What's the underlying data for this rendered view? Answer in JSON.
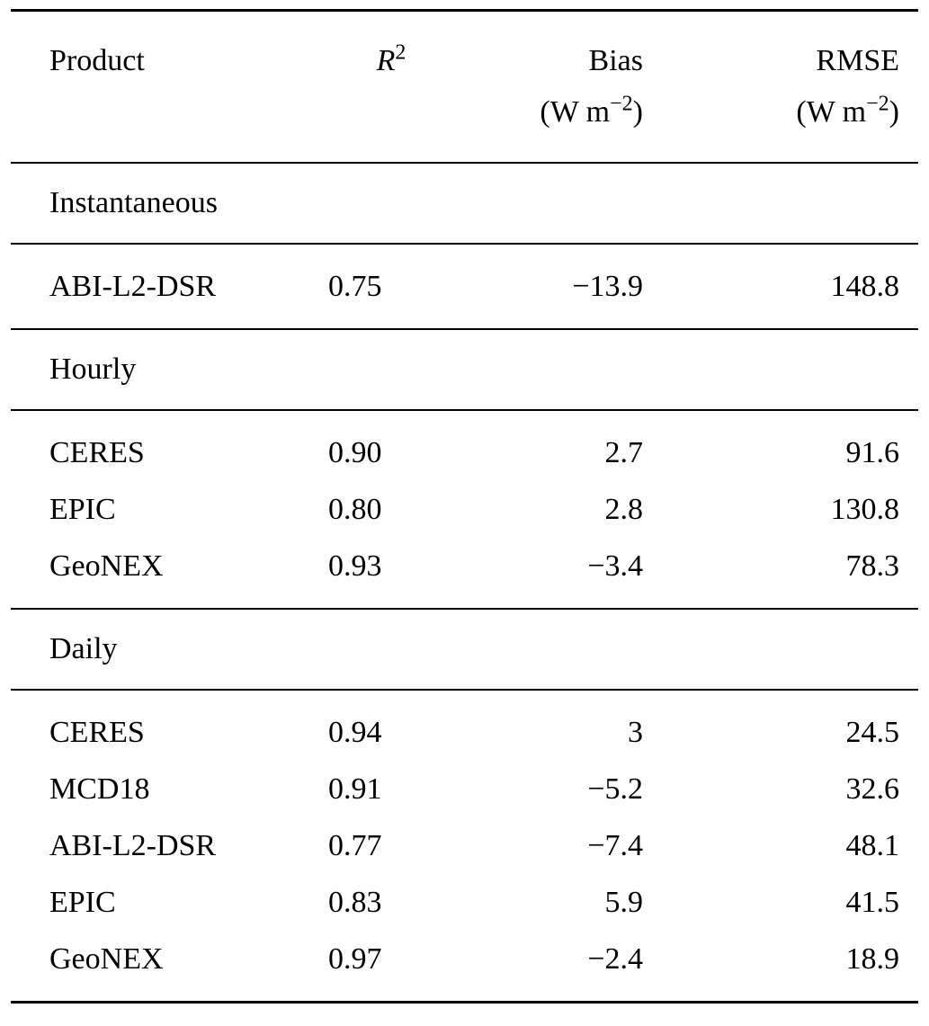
{
  "page": {
    "background": "#ffffff",
    "text_color": "#000000"
  },
  "table": {
    "header": {
      "product": "Product",
      "r2_base": "R",
      "r2_sup": "2",
      "bias": "Bias",
      "rmse": "RMSE",
      "unit_open": "(W m",
      "unit_sup": "−2",
      "unit_close": ")"
    },
    "sections": [
      {
        "title": "Instantaneous",
        "rows": [
          {
            "product": "ABI-L2-DSR",
            "r2": "0.75",
            "bias": "−13.9",
            "rmse": "148.8"
          }
        ]
      },
      {
        "title": "Hourly",
        "rows": [
          {
            "product": "CERES",
            "r2": "0.90",
            "bias": "2.7",
            "rmse": "91.6"
          },
          {
            "product": "EPIC",
            "r2": "0.80",
            "bias": "2.8",
            "rmse": "130.8"
          },
          {
            "product": "GeoNEX",
            "r2": "0.93",
            "bias": "−3.4",
            "rmse": "78.3"
          }
        ]
      },
      {
        "title": "Daily",
        "rows": [
          {
            "product": "CERES",
            "r2": "0.94",
            "bias": "3",
            "rmse": "24.5"
          },
          {
            "product": "MCD18",
            "r2": "0.91",
            "bias": "−5.2",
            "rmse": "32.6"
          },
          {
            "product": "ABI-L2-DSR",
            "r2": "0.77",
            "bias": "−7.4",
            "rmse": "48.1"
          },
          {
            "product": "EPIC",
            "r2": "0.83",
            "bias": "5.9",
            "rmse": "41.5"
          },
          {
            "product": "GeoNEX",
            "r2": "0.97",
            "bias": "−2.4",
            "rmse": "18.9"
          }
        ]
      }
    ]
  },
  "chart_data": {
    "type": "table",
    "columns": [
      "Product",
      "R^2",
      "Bias (W m^-2)",
      "RMSE (W m^-2)"
    ],
    "rows": [
      {
        "group": "Instantaneous",
        "product": "ABI-L2-DSR",
        "r2": 0.75,
        "bias": -13.9,
        "rmse": 148.8
      },
      {
        "group": "Hourly",
        "product": "CERES",
        "r2": 0.9,
        "bias": 2.7,
        "rmse": 91.6
      },
      {
        "group": "Hourly",
        "product": "EPIC",
        "r2": 0.8,
        "bias": 2.8,
        "rmse": 130.8
      },
      {
        "group": "Hourly",
        "product": "GeoNEX",
        "r2": 0.93,
        "bias": -3.4,
        "rmse": 78.3
      },
      {
        "group": "Daily",
        "product": "CERES",
        "r2": 0.94,
        "bias": 3,
        "rmse": 24.5
      },
      {
        "group": "Daily",
        "product": "MCD18",
        "r2": 0.91,
        "bias": -5.2,
        "rmse": 32.6
      },
      {
        "group": "Daily",
        "product": "ABI-L2-DSR",
        "r2": 0.77,
        "bias": -7.4,
        "rmse": 48.1
      },
      {
        "group": "Daily",
        "product": "EPIC",
        "r2": 0.83,
        "bias": 5.9,
        "rmse": 41.5
      },
      {
        "group": "Daily",
        "product": "GeoNEX",
        "r2": 0.97,
        "bias": -2.4,
        "rmse": 18.9
      }
    ]
  }
}
